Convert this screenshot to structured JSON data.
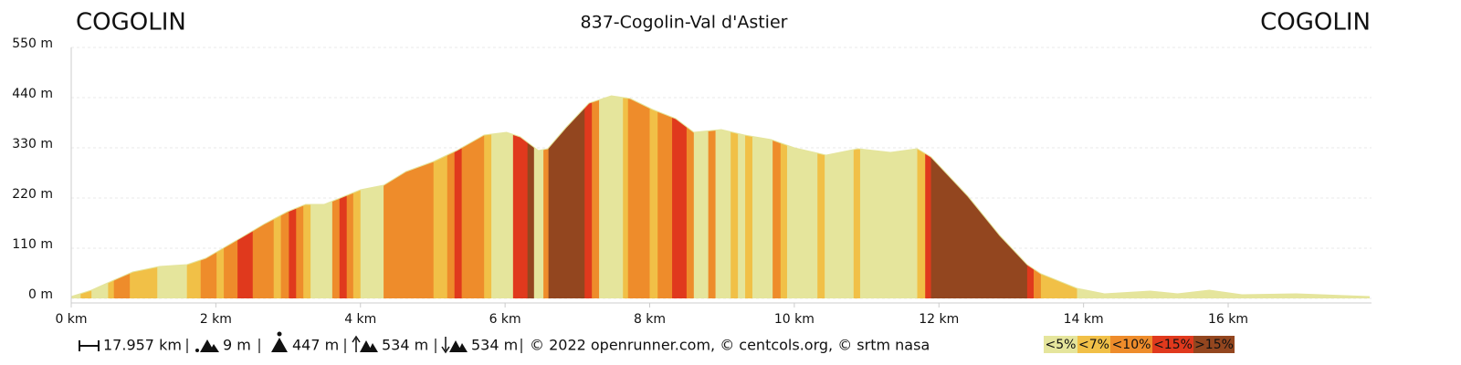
{
  "chart_data": {
    "type": "elevation-profile",
    "title": "837-Cogolin-Val d'Astier",
    "start_label": "COGOLIN",
    "end_label": "COGOLIN",
    "x": [
      0,
      0.28,
      0.59,
      0.85,
      1.22,
      1.6,
      1.86,
      2.1,
      2.36,
      2.68,
      2.99,
      3.24,
      3.5,
      3.75,
      4.0,
      4.32,
      4.63,
      5.01,
      5.33,
      5.71,
      6.02,
      6.21,
      6.46,
      6.59,
      6.84,
      7.16,
      7.47,
      7.73,
      8.04,
      8.36,
      8.61,
      8.99,
      9.31,
      9.68,
      10.0,
      10.44,
      10.88,
      11.33,
      11.7,
      11.89,
      12.4,
      12.84,
      13.22,
      13.41,
      13.91,
      14.29,
      14.92,
      15.3,
      15.74,
      16.19,
      16.94,
      17.957
    ],
    "values": [
      4,
      18,
      40,
      58,
      70,
      74,
      88,
      110,
      134,
      164,
      190,
      206,
      206,
      222,
      238,
      248,
      278,
      300,
      324,
      358,
      364,
      354,
      324,
      328,
      374,
      428,
      444,
      438,
      414,
      394,
      364,
      370,
      358,
      348,
      330,
      314,
      328,
      320,
      328,
      310,
      224,
      138,
      74,
      54,
      22,
      10,
      16,
      10,
      18,
      8,
      10,
      4
    ],
    "slope_bands": {
      "x": [
        0,
        0.13,
        0.28,
        0.51,
        0.59,
        0.81,
        1.19,
        1.6,
        1.79,
        2.01,
        2.11,
        2.3,
        2.51,
        2.8,
        2.9,
        3.01,
        3.11,
        3.21,
        3.31,
        3.61,
        3.71,
        3.81,
        3.9,
        4.0,
        4.32,
        5.01,
        5.2,
        5.3,
        5.4,
        5.71,
        5.81,
        6.11,
        6.31,
        6.4,
        6.53,
        6.6,
        7.1,
        7.2,
        7.3,
        7.63,
        7.7,
        8.0,
        8.11,
        8.31,
        8.51,
        8.61,
        8.81,
        8.91,
        9.12,
        9.22,
        9.32,
        9.42,
        9.7,
        9.81,
        9.9,
        10.32,
        10.42,
        10.82,
        10.91,
        11.7,
        11.81,
        11.89,
        13.22,
        13.31,
        13.41,
        13.91
      ],
      "class": [
        0,
        1,
        0,
        1,
        2,
        1,
        0,
        1,
        2,
        1,
        2,
        3,
        2,
        1,
        2,
        3,
        2,
        1,
        0,
        2,
        3,
        2,
        1,
        0,
        2,
        1,
        2,
        3,
        2,
        1,
        0,
        3,
        4,
        0,
        2,
        4,
        3,
        2,
        0,
        1,
        2,
        1,
        2,
        3,
        2,
        0,
        2,
        0,
        1,
        0,
        1,
        0,
        2,
        1,
        0,
        1,
        0,
        1,
        0,
        1,
        3,
        4,
        3,
        2,
        1,
        0
      ]
    },
    "legend": [
      {
        "name": "<5%",
        "color": "#e5e59c"
      },
      {
        "name": "<7%",
        "color": "#f1c047"
      },
      {
        "name": "<10%",
        "color": "#ee8c2b"
      },
      {
        "name": "<15%",
        "color": "#e0391d"
      },
      {
        "name": ">15%",
        "color": "#93461f"
      }
    ],
    "xlim": [
      0,
      17.957
    ],
    "ylim": [
      0,
      550
    ],
    "xticks": [
      {
        "value": 0,
        "label": "0 km"
      },
      {
        "value": 2,
        "label": "2 km"
      },
      {
        "value": 4,
        "label": "4 km"
      },
      {
        "value": 6,
        "label": "6 km"
      },
      {
        "value": 8,
        "label": "8 km"
      },
      {
        "value": 10,
        "label": "10 km"
      },
      {
        "value": 12,
        "label": "12 km"
      },
      {
        "value": 14,
        "label": "14 km"
      },
      {
        "value": 16,
        "label": "16 km"
      }
    ],
    "yticks": [
      {
        "value": 0,
        "label": "0 m"
      },
      {
        "value": 110,
        "label": "110 m"
      },
      {
        "value": 220,
        "label": "220 m"
      },
      {
        "value": 330,
        "label": "330 m"
      },
      {
        "value": 440,
        "label": "440 m"
      },
      {
        "value": 550,
        "label": "550 m"
      }
    ],
    "grid": true,
    "footer": {
      "distance": "17.957 km",
      "min_elevation": "9 m",
      "max_elevation": "447 m",
      "ascent": "534 m",
      "descent": "534 m",
      "credits": "© 2022 openrunner.com, © centcols.org, © srtm nasa"
    }
  }
}
